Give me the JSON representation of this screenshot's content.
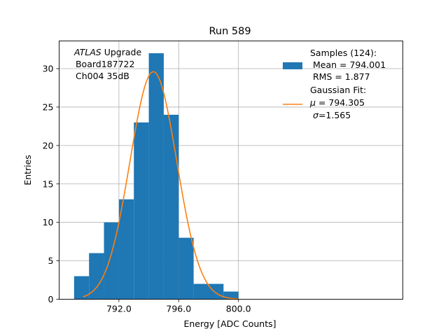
{
  "chart_data": {
    "type": "histogram",
    "title": "Run 589",
    "xlabel": "Energy [ADC Counts]",
    "ylabel": "Entries",
    "xlim": [
      788.0,
      811.0
    ],
    "ylim": [
      0,
      33.6
    ],
    "grid": true,
    "xticks": [
      792.0,
      796.0,
      800.0
    ],
    "xtick_labels": [
      "792.0",
      "796.0",
      "800.0"
    ],
    "yticks": [
      0,
      5,
      10,
      15,
      20,
      25,
      30
    ],
    "ytick_labels": [
      "0",
      "5",
      "10",
      "15",
      "20",
      "25",
      "30"
    ],
    "bins": [
      789,
      790,
      791,
      792,
      793,
      794,
      795,
      796,
      797,
      798,
      799,
      800
    ],
    "counts": [
      3,
      6,
      10,
      13,
      23,
      32,
      24,
      8,
      2,
      2,
      1
    ],
    "bar_color": "#1f77b4",
    "fit": {
      "mu": 794.305,
      "sigma": 1.565,
      "amplitude": 29.6,
      "x_range": [
        789.6,
        800.0
      ],
      "color": "#ff7f0e"
    },
    "annotation": {
      "italic": "ATLAS",
      "rest": " Upgrade",
      "line2": " Board187722",
      "line3": " Ch004 35dB"
    },
    "legend": {
      "position": "top-right",
      "samples_title": "Samples (124):",
      "samples_mean": " Mean = 794.001",
      "samples_rms": " RMS = 1.877",
      "fit_title": "Gaussian Fit:",
      "fit_mu_symbol": "μ",
      "fit_mu_rest": " = 794.305",
      "fit_sigma_symbol": "σ",
      "fit_sigma_rest": "=1.565"
    }
  }
}
